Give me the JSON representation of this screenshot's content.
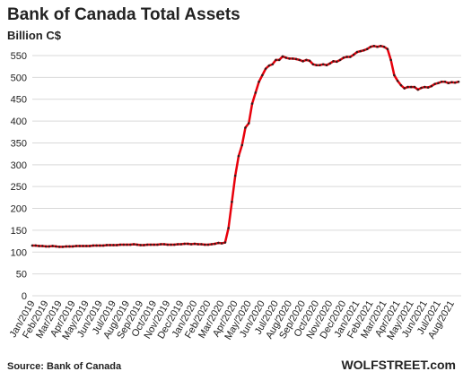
{
  "chart_data": {
    "type": "line",
    "title": "Bank of Canada Total Assets",
    "subtitle": "Billion C$",
    "source": "Source: Bank of Canada",
    "credit": "WOLFSTREET.com",
    "categories": [
      "Jan/2019",
      null,
      null,
      null,
      "Feb/2019",
      null,
      null,
      null,
      "Mar/2019",
      null,
      null,
      null,
      "Apr/2019",
      null,
      null,
      null,
      "May/2019",
      null,
      null,
      null,
      "Jun/2019",
      null,
      null,
      null,
      "Jul/2019",
      null,
      null,
      null,
      "Aug/2019",
      null,
      null,
      null,
      "Sep/2019",
      null,
      null,
      null,
      "Oct/2019",
      null,
      null,
      null,
      "Nov/2019",
      null,
      null,
      null,
      "Dec/2019",
      null,
      null,
      null,
      "Jan/2020",
      null,
      null,
      null,
      "Feb/2020",
      null,
      null,
      null,
      "Mar/2020",
      null,
      null,
      null,
      "Apr/2020",
      null,
      null,
      null,
      "May/2020",
      null,
      null,
      null,
      "Jun/2020",
      null,
      null,
      null,
      "Jul/2020",
      null,
      null,
      null,
      "Aug/2020",
      null,
      null,
      null,
      "Sep/2020",
      null,
      null,
      null,
      "Oct/2020",
      null,
      null,
      null,
      "Nov/2020",
      null,
      null,
      null,
      "Dec/2020",
      null,
      null,
      null,
      "Jan/2021",
      null,
      null,
      null,
      "Feb/2021",
      null,
      null,
      null,
      "Mar/2021",
      null,
      null,
      null,
      "Apr/2021",
      null,
      null,
      null,
      "May/2021",
      null,
      null,
      null,
      "Jun/2021",
      null,
      null,
      null,
      "Jul/2021",
      null,
      null,
      null,
      "Aug/2021",
      null,
      null
    ],
    "series": [
      {
        "name": "Total Assets",
        "color": "#e8000b",
        "marker_color": "#3a1a1a",
        "values": [
          115,
          115,
          114,
          114,
          113,
          113,
          114,
          113,
          112,
          112,
          113,
          113,
          113,
          114,
          114,
          114,
          114,
          114,
          115,
          115,
          115,
          115,
          116,
          116,
          116,
          116,
          117,
          117,
          117,
          117,
          118,
          117,
          116,
          116,
          117,
          117,
          117,
          117,
          118,
          118,
          117,
          117,
          117,
          118,
          118,
          119,
          119,
          118,
          119,
          118,
          118,
          117,
          117,
          118,
          119,
          121,
          120,
          122,
          155,
          215,
          275,
          320,
          345,
          385,
          395,
          440,
          465,
          490,
          505,
          520,
          527,
          530,
          540,
          540,
          548,
          545,
          543,
          543,
          542,
          540,
          537,
          540,
          538,
          530,
          528,
          528,
          530,
          528,
          532,
          537,
          536,
          540,
          545,
          547,
          547,
          552,
          558,
          560,
          562,
          565,
          570,
          572,
          570,
          572,
          570,
          565,
          540,
          505,
          492,
          482,
          475,
          478,
          478,
          478,
          472,
          476,
          478,
          477,
          480,
          485,
          487,
          490,
          490,
          487,
          489,
          488,
          490
        ]
      }
    ],
    "ylim": [
      0,
      550
    ],
    "yticks": [
      0,
      50,
      100,
      150,
      200,
      250,
      300,
      350,
      400,
      450,
      500,
      550
    ],
    "grid": true
  }
}
